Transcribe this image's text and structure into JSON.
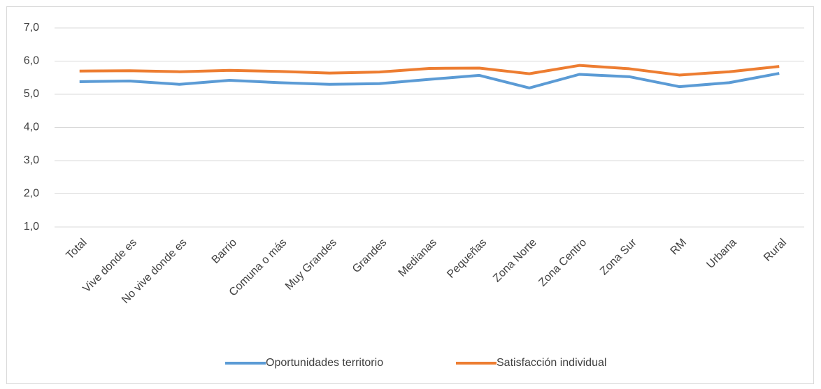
{
  "chart_data": {
    "type": "line",
    "categories": [
      "Total",
      "Vive donde es",
      "No vive donde es",
      "Barrio",
      "Comuna o más",
      "Muy Grandes",
      "Grandes",
      "Medianas",
      "Pequeñas",
      "Zona Norte",
      "Zona Centro",
      "Zona Sur",
      "RM",
      "Urbana",
      "Rural"
    ],
    "series": [
      {
        "name": "Oportunidades territorio",
        "color": "#5b9bd5",
        "values": [
          5.38,
          5.4,
          5.3,
          5.42,
          5.35,
          5.3,
          5.32,
          5.45,
          5.57,
          5.19,
          5.6,
          5.53,
          5.23,
          5.35,
          5.63
        ]
      },
      {
        "name": "Satisfacción individual",
        "color": "#ed7d31",
        "values": [
          5.7,
          5.71,
          5.68,
          5.72,
          5.69,
          5.64,
          5.67,
          5.78,
          5.79,
          5.62,
          5.87,
          5.77,
          5.58,
          5.68,
          5.84
        ]
      }
    ],
    "ylim": [
      1,
      7
    ],
    "yticks": [
      {
        "value": 1,
        "label": "1,0"
      },
      {
        "value": 2,
        "label": "2,0"
      },
      {
        "value": 3,
        "label": "3,0"
      },
      {
        "value": 4,
        "label": "4,0"
      },
      {
        "value": 5,
        "label": "5,0"
      },
      {
        "value": 6,
        "label": "6,0"
      },
      {
        "value": 7,
        "label": "7,0"
      }
    ],
    "grid": true,
    "legend": "bottom"
  }
}
